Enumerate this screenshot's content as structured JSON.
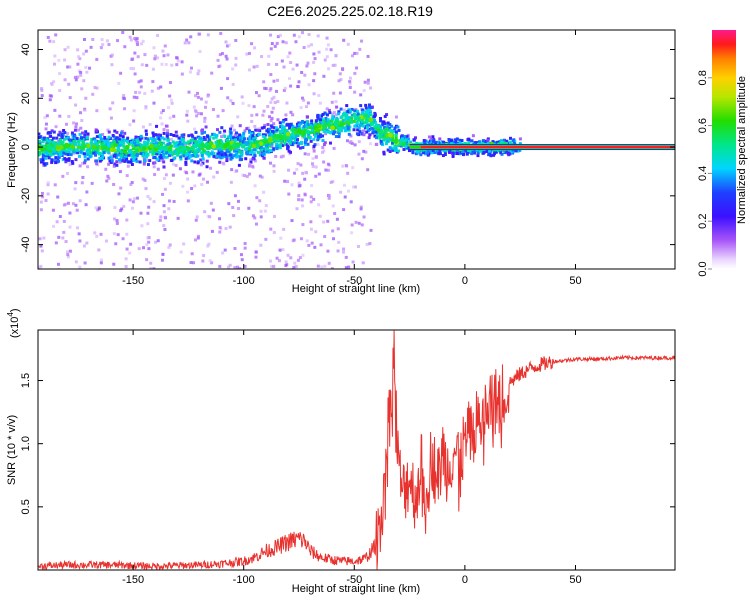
{
  "title": "C2E6.2025.225.02.18.R19",
  "chart_data": [
    {
      "type": "heatmap",
      "xlabel": "Height of straight line (km)",
      "ylabel": "Frequency (Hz)",
      "xlim": [
        -193,
        95
      ],
      "ylim": [
        -50,
        48
      ],
      "xticks": [
        -150,
        -100,
        -50,
        0,
        50
      ],
      "yticks": [
        -40,
        -20,
        0,
        20,
        40
      ],
      "colorbar": {
        "label": "Normalized spectral amplitude",
        "range": [
          0,
          1
        ],
        "ticks": [
          "0.0",
          "0.2",
          "0.4",
          "0.6",
          "0.8"
        ],
        "tick_values": [
          0.0,
          0.2,
          0.4,
          0.6,
          0.8
        ],
        "colormap": "rainbow"
      },
      "trace": {
        "x": [
          -193,
          -180,
          -160,
          -150,
          -140,
          -130,
          -120,
          -110,
          -100,
          -95,
          -90,
          -85,
          -80,
          -75,
          -70,
          -65,
          -60,
          -55,
          -50,
          -45,
          -42,
          -40,
          -38,
          -35,
          -32,
          -30,
          -28,
          -25,
          -20,
          -15,
          -10,
          -5,
          0,
          5,
          10,
          15,
          20,
          40,
          60,
          80,
          95
        ],
        "freq": [
          0,
          0,
          0,
          -1,
          0,
          -1,
          0,
          1,
          0,
          1,
          2,
          4,
          5,
          6,
          7,
          8,
          9,
          10,
          11,
          12,
          10,
          8,
          6,
          5,
          3,
          2,
          2,
          1,
          0,
          0,
          0,
          0,
          0,
          0,
          0,
          0,
          0,
          0,
          0,
          0,
          0
        ]
      }
    },
    {
      "type": "line",
      "xlabel": "Height of straight line (km)",
      "ylabel": "SNR (10 * v/v)",
      "y_multiplier": "(x10",
      "y_multiplier_exp": "4",
      "xlim": [
        -193,
        95
      ],
      "ylim": [
        0,
        1.9
      ],
      "xticks": [
        -150,
        -100,
        -50,
        0,
        50
      ],
      "yticks": [
        0.5,
        1.0,
        1.5
      ],
      "ytick_labels": [
        "0.5",
        "1.0",
        "1.5"
      ],
      "series": [
        {
          "color": "#e8322e",
          "x": [
            -193,
            -180,
            -160,
            -140,
            -120,
            -110,
            -100,
            -95,
            -90,
            -85,
            -80,
            -75,
            -72,
            -70,
            -65,
            -60,
            -55,
            -50,
            -45,
            -40,
            -38,
            -36,
            -35,
            -33,
            -32,
            -31,
            -30,
            -28,
            -25,
            -22,
            -20,
            -18,
            -15,
            -12,
            -10,
            -8,
            -5,
            -2,
            0,
            3,
            5,
            8,
            10,
            13,
            15,
            18,
            20,
            25,
            30,
            35,
            40,
            45,
            50,
            60,
            70,
            80,
            95
          ],
          "y": [
            0.03,
            0.04,
            0.04,
            0.03,
            0.04,
            0.05,
            0.07,
            0.1,
            0.15,
            0.18,
            0.22,
            0.25,
            0.22,
            0.15,
            0.1,
            0.08,
            0.07,
            0.07,
            0.09,
            0.2,
            0.45,
            0.8,
            1.1,
            1.4,
            1.75,
            1.2,
            0.8,
            0.6,
            0.75,
            0.55,
            0.85,
            0.65,
            0.9,
            0.7,
            0.95,
            0.8,
            0.95,
            0.9,
            1.0,
            1.1,
            1.15,
            1.2,
            1.25,
            1.32,
            1.35,
            1.42,
            1.48,
            1.55,
            1.6,
            1.63,
            1.65,
            1.66,
            1.67,
            1.67,
            1.68,
            1.68,
            1.68
          ]
        }
      ]
    }
  ]
}
